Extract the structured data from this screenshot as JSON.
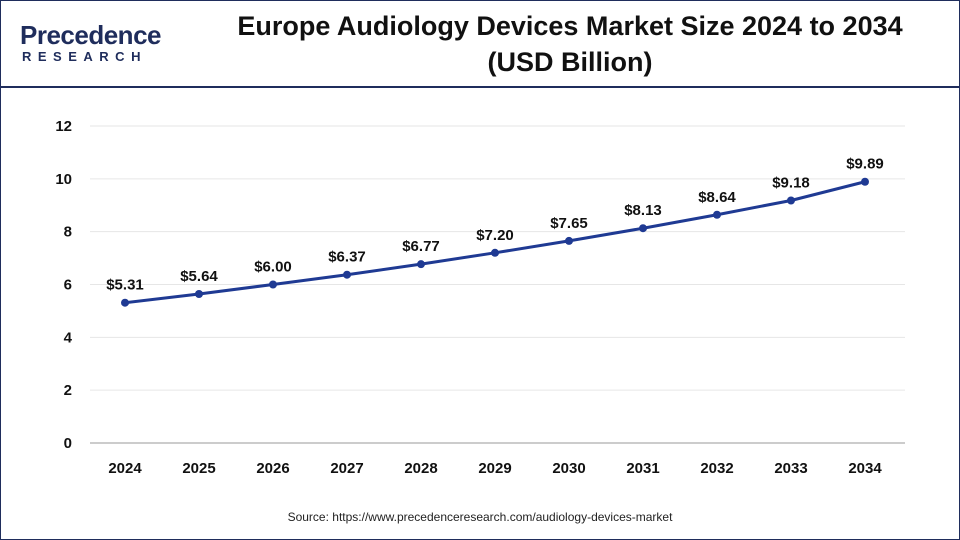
{
  "brand": {
    "logo_word": "recedence",
    "logo_initial": "P",
    "logo_sub": "RESEARCH"
  },
  "title_line1": "Europe Audiology Devices Market Size 2024 to 2034",
  "title_line2": "(USD Billion)",
  "source": "Source: https://www.precedenceresearch.com/audiology-devices-market",
  "colors": {
    "line": "#1f3a93",
    "accent": "#1f2d5c",
    "grid": "#e6e6e6"
  },
  "chart_data": {
    "type": "line",
    "categories": [
      "2024",
      "2025",
      "2026",
      "2027",
      "2028",
      "2029",
      "2030",
      "2031",
      "2032",
      "2033",
      "2034"
    ],
    "values": [
      5.31,
      5.64,
      6.0,
      6.37,
      6.77,
      7.2,
      7.65,
      8.13,
      8.64,
      9.18,
      9.89
    ],
    "data_labels": [
      "$5.31",
      "$5.64",
      "$6.00",
      "$6.37",
      "$6.77",
      "$7.20",
      "$7.65",
      "$8.13",
      "$8.64",
      "$9.18",
      "$9.89"
    ],
    "yticks": [
      0,
      2,
      4,
      6,
      8,
      10,
      12
    ],
    "ylim": [
      0,
      12
    ],
    "grid": true,
    "legend": "none"
  }
}
